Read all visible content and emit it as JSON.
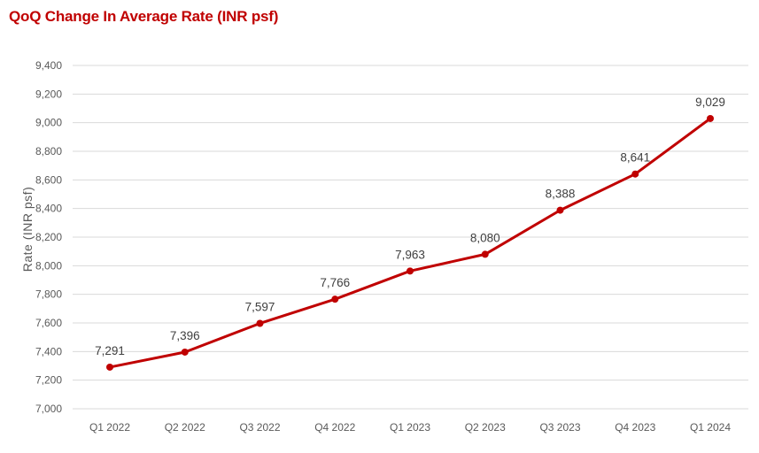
{
  "title": "QoQ Change In Average Rate (INR psf)",
  "chart_data": {
    "type": "line",
    "title": "QoQ Change In Average Rate (INR psf)",
    "xlabel": "",
    "ylabel": "Rate (INR psf)",
    "categories": [
      "Q1 2022",
      "Q2 2022",
      "Q3 2022",
      "Q4 2022",
      "Q1 2023",
      "Q2 2023",
      "Q3 2023",
      "Q4 2023",
      "Q1 2024"
    ],
    "series": [
      {
        "values": [
          7291,
          7396,
          7597,
          7766,
          7963,
          8080,
          8388,
          8641,
          9029
        ],
        "data_labels": [
          "7,291",
          "7,396",
          "7,597",
          "7,766",
          "7,963",
          "8,080",
          "8,388",
          "8,641",
          "9,029"
        ]
      }
    ],
    "ylim": [
      7000,
      9400
    ],
    "y_ticks": [
      7000,
      7200,
      7400,
      7600,
      7800,
      8000,
      8200,
      8400,
      8600,
      8800,
      9000,
      9200,
      9400
    ],
    "y_tick_labels": [
      "7,000",
      "7,200",
      "7,400",
      "7,600",
      "7,800",
      "8,000",
      "8,200",
      "8,400",
      "8,600",
      "8,800",
      "9,000",
      "9,200",
      "9,400"
    ],
    "grid": true,
    "legend": "none",
    "line_color": "#c00000",
    "gridline_color": "#d9d9d9"
  }
}
